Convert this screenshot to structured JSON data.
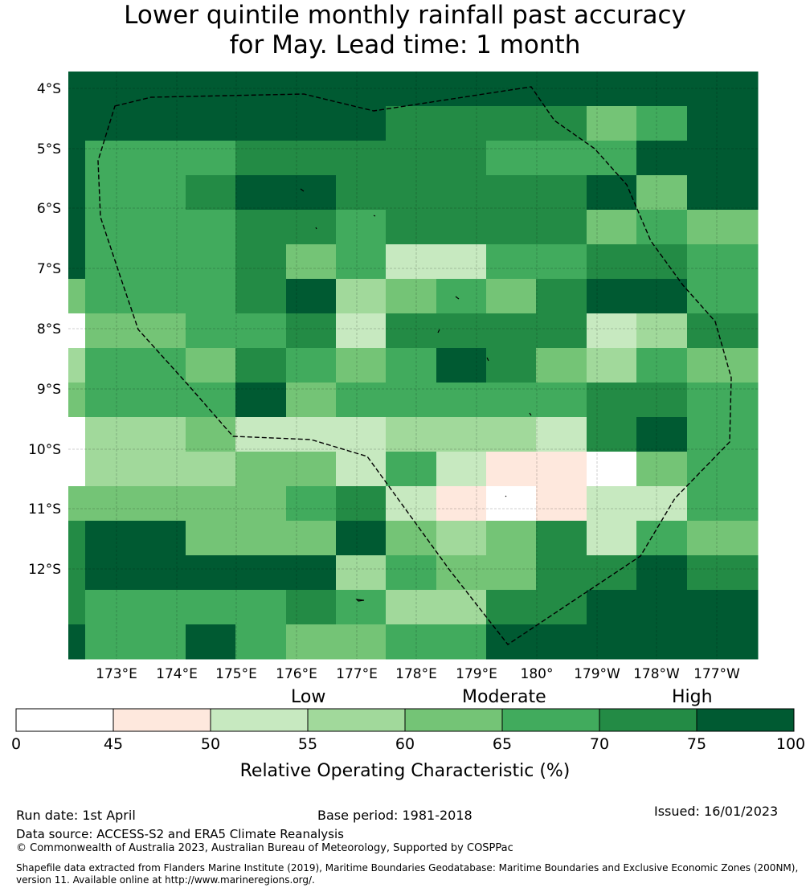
{
  "title": {
    "line1": "Lower quintile monthly rainfall past accuracy",
    "line2": "for May. Lead time: 1 month"
  },
  "map": {
    "lat_labels": [
      "4°S",
      "5°S",
      "6°S",
      "7°S",
      "8°S",
      "9°S",
      "10°S",
      "11°S",
      "12°S"
    ],
    "lon_labels": [
      "173°E",
      "174°E",
      "175°E",
      "176°E",
      "177°E",
      "178°E",
      "179°E",
      "180°",
      "179°W",
      "178°W",
      "177°W"
    ],
    "grid_rows": [
      "7777777777777",
      "7777776666457",
      "7556666655577",
      "7567766666747",
      "7556656666454",
      "7556452255665",
      "4556734546775",
      "0455626666236",
      "3546545764354",
      "4557455555665",
      "0342223332675",
      "0334425211045",
      "4444562101225",
      "6744474346254",
      "6777735446676",
      "6555653366777",
      "7575445577777"
    ],
    "colors": [
      "#ffffff",
      "#fee8dd",
      "#c7e9c0",
      "#a1d99b",
      "#74c476",
      "#41ab5d",
      "#238b45",
      "#005a32"
    ]
  },
  "colorbar": {
    "categories": [
      "Low",
      "Moderate",
      "High"
    ],
    "ticks": [
      "0",
      "45",
      "50",
      "55",
      "60",
      "65",
      "70",
      "75",
      "100"
    ],
    "label": "Relative Operating Characteristic (%)"
  },
  "footer": {
    "run_date": "Run date: 1st April",
    "base_period": "Base period: 1981-2018",
    "issued": "Issued: 16/01/2023",
    "data_source": "Data source: ACCESS-S2 and ERA5 Climate Reanalysis",
    "copyright": "© Commonwealth of Australia 2023, Australian Bureau of Meteorology, Supported by COSPPac",
    "shapefile": "Shapefile data extracted from Flanders Marine Institute (2019), Maritime Boundaries Geodatabase: Maritime Boundaries and Exclusive Economic Zones (200NM), version 11. Available online at http://www.marineregions.org/."
  }
}
